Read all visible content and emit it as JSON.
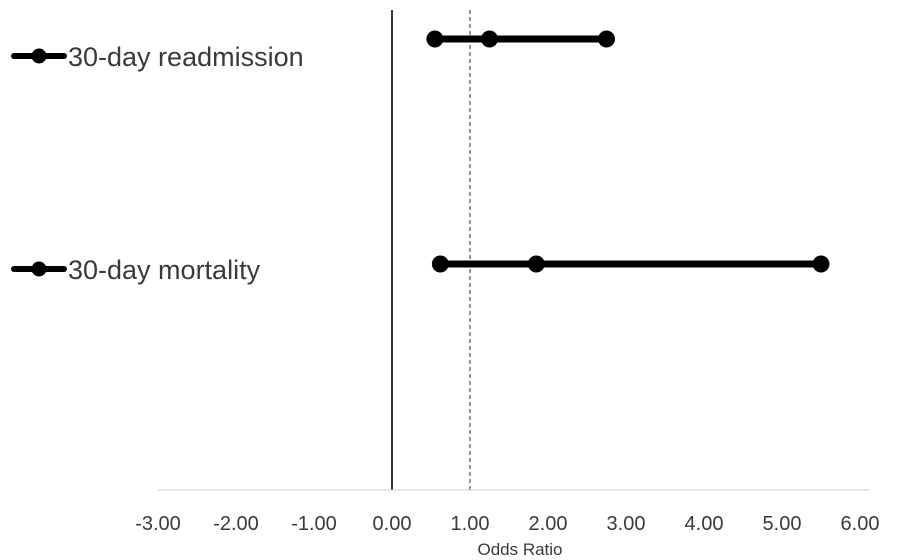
{
  "chart_data": {
    "type": "forest",
    "title": "",
    "xlabel": "Odds Ratio",
    "ylabel": "",
    "xlim": [
      -3,
      6
    ],
    "x_ticks": [
      -3,
      -2,
      -1,
      0,
      1,
      2,
      3,
      4,
      5,
      6
    ],
    "x_tick_labels": [
      "-3.00",
      "-2.00",
      "-1.00",
      "0.00",
      "1.00",
      "2.00",
      "3.00",
      "4.00",
      "5.00",
      "6.00"
    ],
    "reference_lines": [
      {
        "x": 0,
        "style": "solid"
      },
      {
        "x": 1,
        "style": "dashed"
      }
    ],
    "grid": false,
    "legend_position": "left",
    "series": [
      {
        "name": "30-day readmission",
        "lower": 0.55,
        "estimate": 1.25,
        "upper": 2.75,
        "color": "#000000"
      },
      {
        "name": "30-day mortality",
        "lower": 0.62,
        "estimate": 1.85,
        "upper": 5.5,
        "color": "#000000"
      }
    ]
  }
}
